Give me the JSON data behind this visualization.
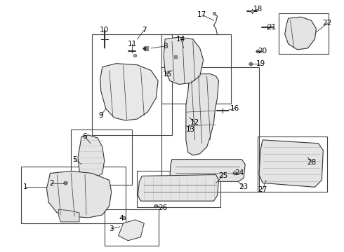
{
  "bg_color": "#ffffff",
  "fig_width": 4.9,
  "fig_height": 3.6,
  "dpi": 100,
  "label_fs": 7.5,
  "line_color": "#333333",
  "box_color": "#444444"
}
